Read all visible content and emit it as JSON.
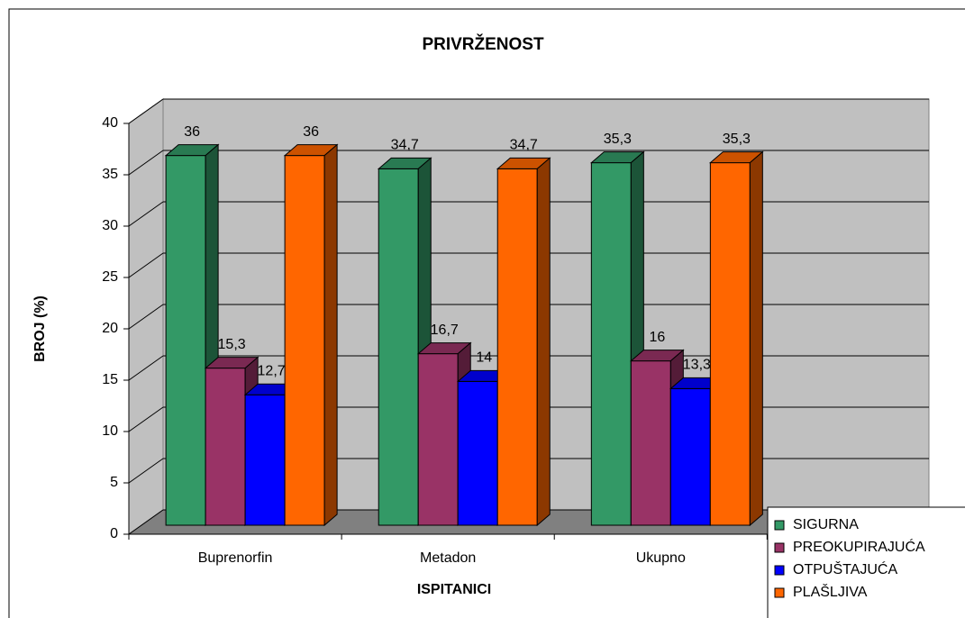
{
  "chart_data": {
    "type": "bar3d",
    "title": "PRIVRŽENOST",
    "xlabel": "ISPITANICI",
    "ylabel": "BROJ (%)",
    "categories": [
      "Buprenorfin",
      "Metadon",
      "Ukupno"
    ],
    "series": [
      {
        "name": "SIGURNA",
        "color": "#339966",
        "values": [
          36,
          34.7,
          35.3
        ],
        "value_labels": [
          "36",
          "34,7",
          "35,3"
        ]
      },
      {
        "name": "PREOKUPIRAJUĆA",
        "color": "#993366",
        "values": [
          15.3,
          16.7,
          16
        ],
        "value_labels": [
          "15,3",
          "16,7",
          "16"
        ]
      },
      {
        "name": "OTPUŠTAJUĆA",
        "color": "#0000ff",
        "values": [
          12.7,
          14,
          13.3
        ],
        "value_labels": [
          "12,7",
          "14",
          "13,3"
        ]
      },
      {
        "name": "PLAŠLJIVA",
        "color": "#ff6600",
        "values": [
          36,
          34.7,
          35.3
        ],
        "value_labels": [
          "36",
          "34,7",
          "35,3"
        ]
      }
    ],
    "ylim": [
      0,
      40
    ],
    "yticks": [
      0,
      5,
      10,
      15,
      20,
      25,
      30,
      35,
      40
    ],
    "grid": true
  }
}
